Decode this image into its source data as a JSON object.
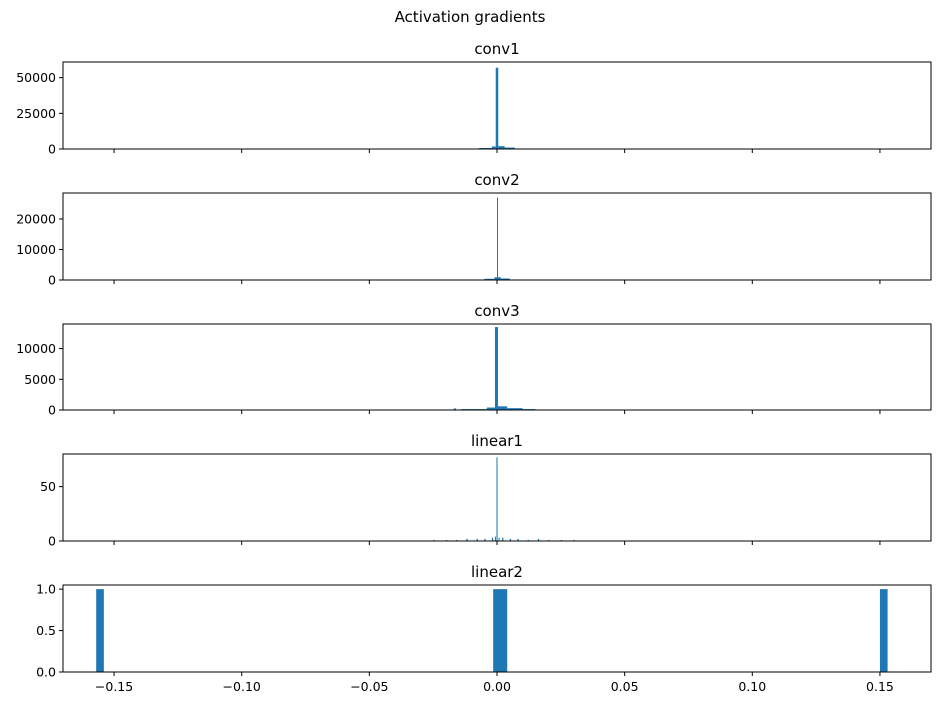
{
  "chart_data": {
    "type": "bar",
    "title": "Activation gradients",
    "bar_color": "#1f77b4",
    "shared_x": true,
    "xlim": [
      -0.17,
      0.17
    ],
    "xticks": [
      -0.15,
      -0.1,
      -0.05,
      0.0,
      0.05,
      0.1,
      0.15
    ],
    "xtick_labels": [
      "−0.15",
      "−0.10",
      "−0.05",
      "0.00",
      "0.05",
      "0.10",
      "0.15"
    ],
    "panels": [
      {
        "title": "conv1",
        "ylim": [
          0,
          61000
        ],
        "yticks": [
          0,
          25000,
          50000
        ],
        "ytick_labels": [
          "0",
          "25000",
          "50000"
        ],
        "bars": [
          {
            "x0": -0.007,
            "x1": -0.002,
            "v": 700
          },
          {
            "x0": -0.002,
            "x1": -0.0005,
            "v": 1800
          },
          {
            "x0": -0.0005,
            "x1": 0.0005,
            "v": 57000
          },
          {
            "x0": 0.0005,
            "x1": 0.003,
            "v": 2000
          },
          {
            "x0": 0.003,
            "x1": 0.007,
            "v": 1000
          }
        ]
      },
      {
        "title": "conv2",
        "ylim": [
          0,
          28500
        ],
        "yticks": [
          0,
          10000,
          20000
        ],
        "ytick_labels": [
          "0",
          "10000",
          "20000"
        ],
        "bars": [
          {
            "x0": -0.005,
            "x1": -0.001,
            "v": 400
          },
          {
            "x0": -0.001,
            "x1": 0.0,
            "v": 900
          },
          {
            "x0": 0.0,
            "x1": 0.0004,
            "v": 27000
          },
          {
            "x0": 0.0004,
            "x1": 0.0015,
            "v": 900
          },
          {
            "x0": 0.0015,
            "x1": 0.005,
            "v": 500
          }
        ]
      },
      {
        "title": "conv3",
        "ylim": [
          0,
          14000
        ],
        "yticks": [
          0,
          5000,
          10000
        ],
        "ytick_labels": [
          "0",
          "5000",
          "10000"
        ],
        "bars": [
          {
            "x0": -0.017,
            "x1": -0.016,
            "v": 250
          },
          {
            "x0": -0.014,
            "x1": -0.004,
            "v": 150
          },
          {
            "x0": -0.004,
            "x1": -0.0008,
            "v": 400
          },
          {
            "x0": -0.0008,
            "x1": 0.0004,
            "v": 13500
          },
          {
            "x0": 0.0004,
            "x1": 0.004,
            "v": 600
          },
          {
            "x0": 0.004,
            "x1": 0.01,
            "v": 300
          },
          {
            "x0": 0.01,
            "x1": 0.015,
            "v": 150
          }
        ]
      },
      {
        "title": "linear1",
        "ylim": [
          0,
          80
        ],
        "yticks": [
          0,
          50
        ],
        "ytick_labels": [
          "0",
          "50"
        ],
        "bars": [
          {
            "x0": -0.025,
            "x1": -0.0245,
            "v": 1
          },
          {
            "x0": -0.02,
            "x1": -0.0195,
            "v": 1
          },
          {
            "x0": -0.016,
            "x1": -0.0155,
            "v": 1
          },
          {
            "x0": -0.012,
            "x1": -0.0115,
            "v": 2
          },
          {
            "x0": -0.008,
            "x1": -0.0075,
            "v": 2
          },
          {
            "x0": -0.005,
            "x1": -0.0045,
            "v": 2
          },
          {
            "x0": -0.002,
            "x1": -0.0015,
            "v": 3
          },
          {
            "x0": -0.0008,
            "x1": -0.0004,
            "v": 4
          },
          {
            "x0": -0.0002,
            "x1": 0.0002,
            "v": 77
          },
          {
            "x0": 0.0006,
            "x1": 0.001,
            "v": 3
          },
          {
            "x0": 0.002,
            "x1": 0.0025,
            "v": 3
          },
          {
            "x0": 0.005,
            "x1": 0.0055,
            "v": 2
          },
          {
            "x0": 0.008,
            "x1": 0.0085,
            "v": 2
          },
          {
            "x0": 0.012,
            "x1": 0.0125,
            "v": 1
          },
          {
            "x0": 0.016,
            "x1": 0.0165,
            "v": 2
          },
          {
            "x0": 0.02,
            "x1": 0.0205,
            "v": 1
          },
          {
            "x0": 0.025,
            "x1": 0.0255,
            "v": 1
          },
          {
            "x0": 0.03,
            "x1": 0.0305,
            "v": 1
          }
        ]
      },
      {
        "title": "linear2",
        "ylim": [
          0,
          1.05
        ],
        "yticks": [
          0.0,
          0.5,
          1.0
        ],
        "ytick_labels": [
          "0.0",
          "0.5",
          "1.0"
        ],
        "bars": [
          {
            "x0": -0.157,
            "x1": -0.154,
            "v": 1
          },
          {
            "x0": -0.0015,
            "x1": 0.004,
            "v": 1
          },
          {
            "x0": 0.15,
            "x1": 0.153,
            "v": 1
          }
        ]
      }
    ]
  }
}
